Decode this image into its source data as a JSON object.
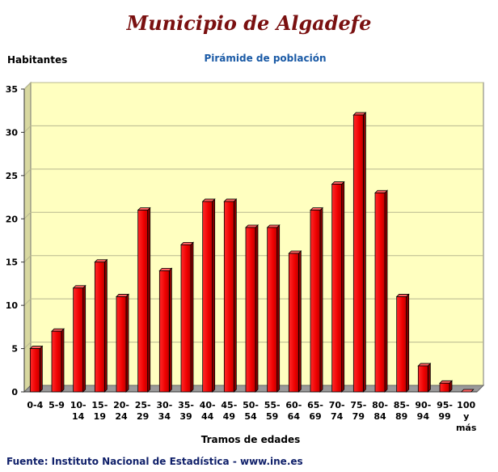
{
  "header": {
    "title": "Municipio de Algadefe",
    "subtitle": "Pirámide de población"
  },
  "footer": {
    "source": "Fuente: Instituto Nacional de Estadística - www.ine.es"
  },
  "chart_data": {
    "type": "bar",
    "title": "Pirámide de población",
    "ylabel": "Habitantes",
    "xlabel": "Tramos de edades",
    "ylim": [
      0,
      35
    ],
    "yticks": [
      0,
      5,
      10,
      15,
      20,
      25,
      30,
      35
    ],
    "grid": true,
    "bar_color": "#ee0000",
    "plot_background": "#ffffc0",
    "categories": [
      [
        "0-4"
      ],
      [
        "5-9"
      ],
      [
        "10-",
        "14"
      ],
      [
        "15-",
        "19"
      ],
      [
        "20-",
        "24"
      ],
      [
        "25-",
        "29"
      ],
      [
        "30-",
        "34"
      ],
      [
        "35-",
        "39"
      ],
      [
        "40-",
        "44"
      ],
      [
        "45-",
        "49"
      ],
      [
        "50-",
        "54"
      ],
      [
        "55-",
        "59"
      ],
      [
        "60-",
        "64"
      ],
      [
        "65-",
        "69"
      ],
      [
        "70-",
        "74"
      ],
      [
        "75-",
        "79"
      ],
      [
        "80-",
        "84"
      ],
      [
        "85-",
        "89"
      ],
      [
        "90-",
        "94"
      ],
      [
        "95-",
        "99"
      ],
      [
        "100",
        "y",
        "más"
      ]
    ],
    "values": [
      5,
      7,
      12,
      15,
      11,
      21,
      14,
      17,
      22,
      22,
      19,
      19,
      16,
      21,
      24,
      32,
      23,
      11,
      3,
      1,
      0
    ]
  }
}
